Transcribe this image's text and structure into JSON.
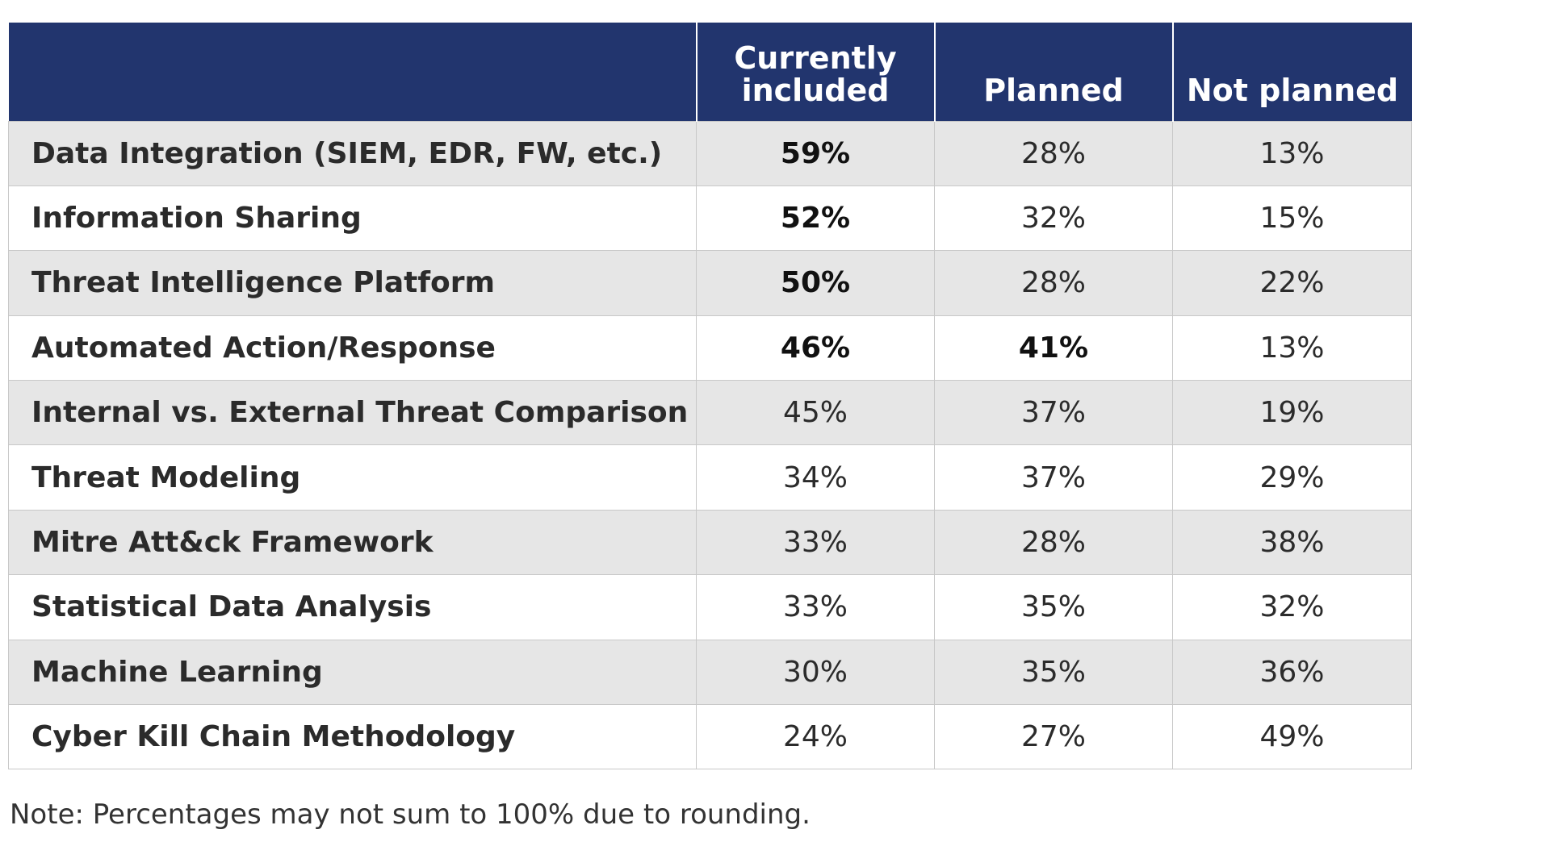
{
  "chart_data": {
    "type": "table",
    "columns": [
      "",
      "Currently included",
      "Planned",
      "Not planned"
    ],
    "column_header_lines": [
      [],
      [
        "Currently",
        "included"
      ],
      [
        "Planned"
      ],
      [
        "Not planned"
      ]
    ],
    "rows": [
      {
        "label": "Data Integration (SIEM, EDR, FW, etc.)",
        "values": [
          "59%",
          "28%",
          "13%"
        ],
        "bold": [
          true,
          false,
          false
        ]
      },
      {
        "label": "Information Sharing",
        "values": [
          "52%",
          "32%",
          "15%"
        ],
        "bold": [
          true,
          false,
          false
        ]
      },
      {
        "label": "Threat Intelligence Platform",
        "values": [
          "50%",
          "28%",
          "22%"
        ],
        "bold": [
          true,
          false,
          false
        ]
      },
      {
        "label": "Automated Action/Response",
        "values": [
          "46%",
          "41%",
          "13%"
        ],
        "bold": [
          true,
          true,
          false
        ]
      },
      {
        "label": "Internal vs. External Threat Comparison",
        "values": [
          "45%",
          "37%",
          "19%"
        ],
        "bold": [
          false,
          false,
          false
        ]
      },
      {
        "label": "Threat Modeling",
        "values": [
          "34%",
          "37%",
          "29%"
        ],
        "bold": [
          false,
          false,
          false
        ]
      },
      {
        "label": "Mitre Att&ck Framework",
        "values": [
          "33%",
          "28%",
          "38%"
        ],
        "bold": [
          false,
          false,
          false
        ]
      },
      {
        "label": "Statistical Data Analysis",
        "values": [
          "33%",
          "35%",
          "32%"
        ],
        "bold": [
          false,
          false,
          false
        ]
      },
      {
        "label": "Machine Learning",
        "values": [
          "30%",
          "35%",
          "36%"
        ],
        "bold": [
          false,
          false,
          false
        ]
      },
      {
        "label": "Cyber Kill Chain Methodology",
        "values": [
          "24%",
          "27%",
          "49%"
        ],
        "bold": [
          false,
          false,
          false
        ]
      }
    ],
    "note": "Note: Percentages may not sum to 100% due to rounding."
  },
  "colors": {
    "header_background": "#22356e",
    "header_text": "#ffffff",
    "row_shade": "#e6e6e6",
    "row_plain": "#ffffff",
    "grid_lines": "#c8c8c8"
  }
}
